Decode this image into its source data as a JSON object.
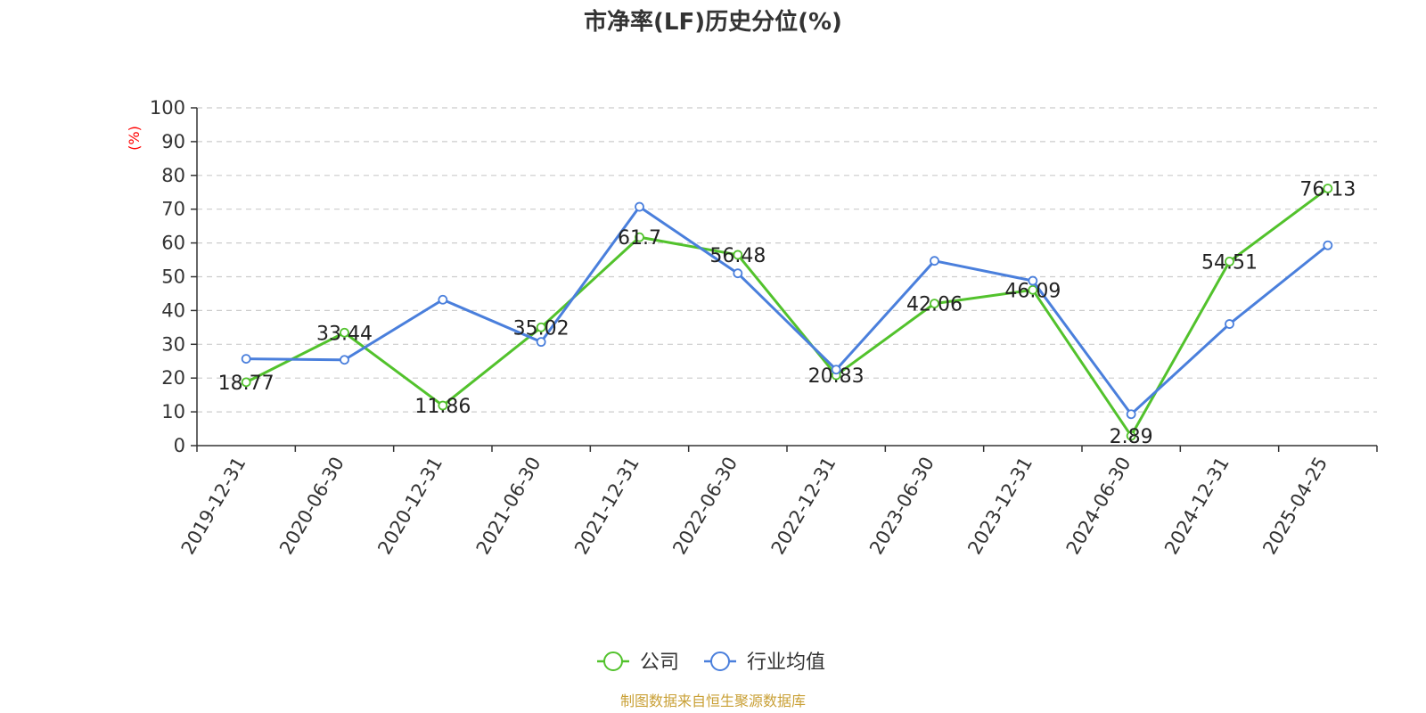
{
  "chart_data": {
    "type": "line",
    "title": "市净率(LF)历史分位(%)",
    "y_unit": "(%)",
    "ylim": [
      0,
      100
    ],
    "yticks": [
      0,
      10,
      20,
      30,
      40,
      50,
      60,
      70,
      80,
      90,
      100
    ],
    "grid": true,
    "legend_position": "bottom",
    "categories": [
      "2019-12-31",
      "2020-06-30",
      "2020-12-31",
      "2021-06-30",
      "2021-12-31",
      "2022-06-30",
      "2022-12-31",
      "2023-06-30",
      "2023-12-31",
      "2024-06-30",
      "2024-12-31",
      "2025-04-25"
    ],
    "series": [
      {
        "name": "公司",
        "color": "#52c22c",
        "values": [
          18.77,
          33.44,
          11.86,
          35.02,
          61.7,
          56.48,
          20.83,
          42.06,
          46.09,
          2.89,
          54.51,
          76.13
        ],
        "labels": [
          "18.77",
          "33.44",
          "11.86",
          "35.02",
          "61.7",
          "56.48",
          "20.83",
          "42.06",
          "46.09",
          "2.89",
          "54.51",
          "76.13"
        ]
      },
      {
        "name": "行业均值",
        "color": "#4a7fdc",
        "values": [
          25.7,
          25.4,
          43.2,
          30.7,
          70.7,
          51.0,
          22.5,
          54.7,
          48.8,
          9.3,
          36.0,
          59.3
        ]
      }
    ]
  },
  "footer": {
    "source": "制图数据来自恒生聚源数据库"
  }
}
